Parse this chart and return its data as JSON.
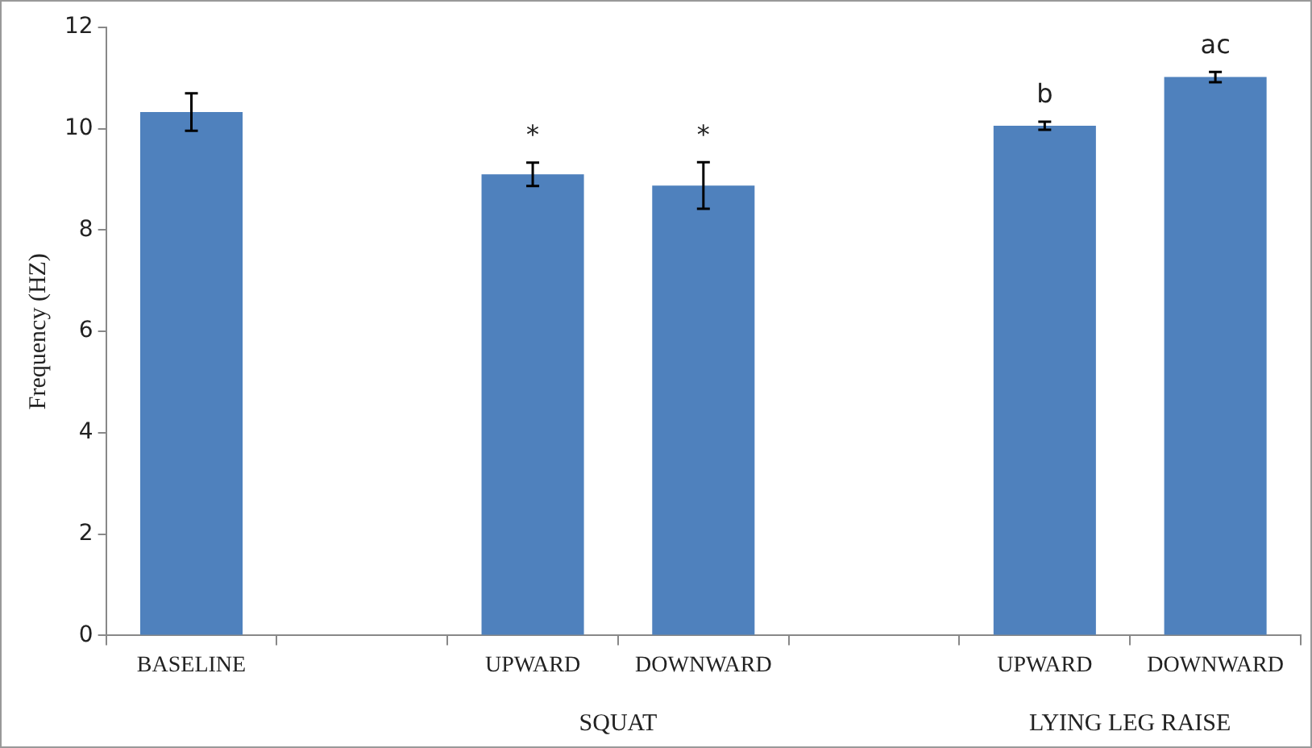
{
  "chart_data": {
    "type": "bar",
    "ylabel": "Frequency (HZ)",
    "categories": [
      "BASELINE",
      null,
      "UPWARD",
      "DOWNWARD",
      null,
      "UPWARD",
      "DOWNWARD"
    ],
    "values": [
      10.33,
      null,
      9.1,
      8.88,
      null,
      10.06,
      11.02
    ],
    "errors": [
      0.37,
      null,
      0.23,
      0.46,
      null,
      0.08,
      0.1
    ],
    "value_labels": [
      null,
      null,
      "*",
      "*",
      null,
      "b",
      "ac"
    ],
    "color": "#4f81bd",
    "ylim": [
      0,
      12
    ],
    "yticks": [
      0,
      2,
      4,
      6,
      8,
      10,
      12
    ],
    "grid": false,
    "annotations": [
      "SQUAT",
      "LYING LEG RAISE"
    ]
  }
}
